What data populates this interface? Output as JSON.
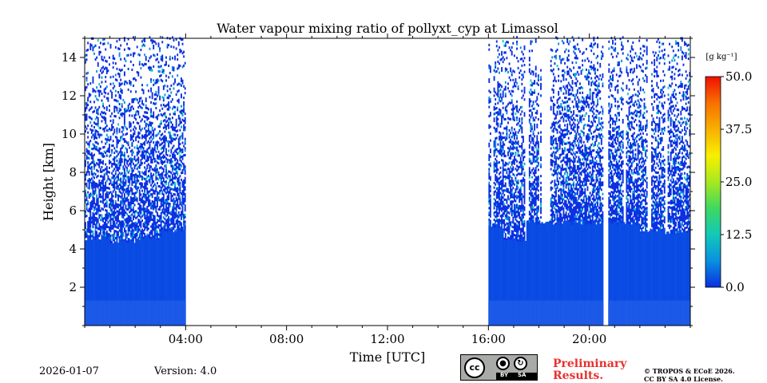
{
  "chart_data": {
    "type": "heatmap",
    "title": "Water vapour mixing ratio of pollyxt_cyp at Limassol",
    "xlabel": "Time [UTC]",
    "ylabel": "Height [km]",
    "xlim_hours": [
      0,
      24
    ],
    "ylim_km": [
      0,
      15
    ],
    "x_ticks": [
      {
        "value": 4,
        "label": "04:00"
      },
      {
        "value": 8,
        "label": "08:00"
      },
      {
        "value": 12,
        "label": "12:00"
      },
      {
        "value": 16,
        "label": "16:00"
      },
      {
        "value": 20,
        "label": "20:00"
      }
    ],
    "y_ticks": [
      {
        "value": 2,
        "label": "2"
      },
      {
        "value": 4,
        "label": "4"
      },
      {
        "value": 6,
        "label": "6"
      },
      {
        "value": 8,
        "label": "8"
      },
      {
        "value": 10,
        "label": "10"
      },
      {
        "value": 12,
        "label": "12"
      },
      {
        "value": 14,
        "label": "14"
      }
    ],
    "colorbar": {
      "label": "[g kg⁻¹]",
      "range": [
        0,
        50
      ],
      "ticks": [
        "0.0",
        "12.5",
        "25.0",
        "37.5",
        "50.0"
      ],
      "colors": [
        "#0a2fe0",
        "#0a90e0",
        "#12c9b8",
        "#3fd860",
        "#a8e820",
        "#f8f000",
        "#f8b000",
        "#f87000",
        "#f01000"
      ]
    },
    "measurement_periods_hours": [
      [
        0,
        4
      ],
      [
        16,
        24
      ]
    ],
    "no_data_gaps_hours": [
      [
        4,
        16
      ],
      [
        20.55,
        20.75
      ]
    ],
    "typical_values_g_per_kg": {
      "boundary_layer_0_5km": 3,
      "free_troposphere": 1
    },
    "profile_top_km": [
      {
        "time": 0.5,
        "top": 4.6
      },
      {
        "time": 1.5,
        "top": 4.4
      },
      {
        "time": 2.5,
        "top": 4.6
      },
      {
        "time": 3.5,
        "top": 5.0
      },
      {
        "time": 16.2,
        "top": 5.2
      },
      {
        "time": 17.0,
        "top": 4.5
      },
      {
        "time": 18.0,
        "top": 5.4
      },
      {
        "time": 19.0,
        "top": 5.4
      },
      {
        "time": 20.0,
        "top": 5.4
      },
      {
        "time": 21.5,
        "top": 5.4
      },
      {
        "time": 22.5,
        "top": 5.0
      },
      {
        "time": 23.5,
        "top": 4.9
      }
    ]
  },
  "footer": {
    "date": "2026-01-07",
    "version": "Version: 4.0",
    "license_badge": {
      "left": "cc",
      "by": "BY",
      "sa": "SA"
    },
    "preliminary": "Preliminary Results.",
    "copyright_line1": "© TROPOS & ECoE 2026.",
    "copyright_line2": "CC BY SA 4.0 License."
  }
}
